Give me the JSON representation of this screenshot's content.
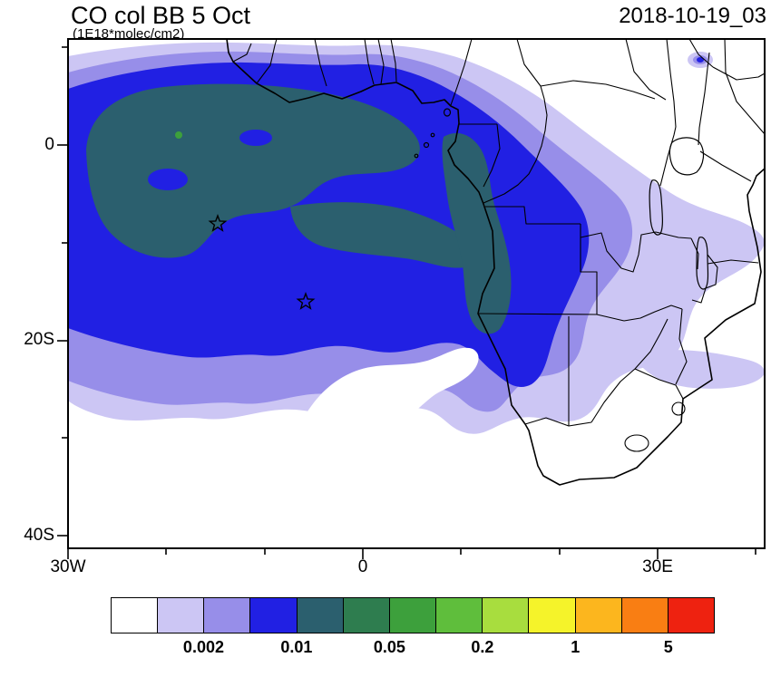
{
  "header": {
    "title": "CO col BB 5 Oct",
    "subtitle": "(1E18*molec/cm2)",
    "datetime": "2018-10-19_03"
  },
  "axes": {
    "y_ticks": [
      "0",
      "20S",
      "40S"
    ],
    "x_ticks": [
      "30W",
      "0",
      "30E"
    ]
  },
  "palette": {
    "c1": "#ffffff",
    "c2": "#ccc6f4",
    "c3": "#978ee9",
    "c4": "#2120e3",
    "c5": "#2b5f6e",
    "c6": "#2e7d4f",
    "c7": "#3da03c",
    "c8": "#5fbe3c",
    "c9": "#a8dd3e",
    "c10": "#f5f32a",
    "c11": "#fcb61e",
    "c12": "#f97e13",
    "c13": "#ee2210"
  },
  "colorbar": {
    "tick_labels": [
      "0.002",
      "0.01",
      "0.05",
      "0.2",
      "1",
      "5"
    ],
    "colors": [
      "#ffffff",
      "#ccc6f4",
      "#978ee9",
      "#2120e3",
      "#2b5f6e",
      "#2e7d4f",
      "#3da03c",
      "#5fbe3c",
      "#a8dd3e",
      "#f5f32a",
      "#fcb61e",
      "#f97e13",
      "#ee2210"
    ]
  },
  "chart_data": {
    "type": "heatmap",
    "title": "CO col BB 5 Oct",
    "units": "1E18*molec/cm2",
    "valid_time": "2018-10-19_03",
    "region": "Africa and tropical South Atlantic",
    "map_extent": {
      "lon": [
        -30,
        41
      ],
      "lat": [
        -41,
        11
      ]
    },
    "x_tick_labels": [
      "30W",
      "0",
      "30E"
    ],
    "y_tick_labels": [
      "0",
      "20S",
      "40S"
    ],
    "contour_levels": [
      0.001,
      0.002,
      0.005,
      0.01,
      0.02,
      0.05,
      0.1,
      0.2,
      0.5,
      1,
      2,
      5
    ],
    "labeled_levels": [
      0.002,
      0.01,
      0.05,
      0.2,
      1,
      5
    ],
    "colors": [
      "#ffffff",
      "#ccc6f4",
      "#978ee9",
      "#2120e3",
      "#2b5f6e",
      "#2e7d4f",
      "#3da03c",
      "#5fbe3c",
      "#a8dd3e",
      "#f5f32a",
      "#fcb61e",
      "#f97e13",
      "#ee2210"
    ],
    "legend_position": "bottom",
    "grid": false,
    "markers": [
      {
        "type": "star",
        "lon": -14.8,
        "lat": -8.1
      },
      {
        "type": "star",
        "lon": -5.8,
        "lat": -16.0
      }
    ],
    "features": [
      {
        "region": "central tropical South Atlantic plume core",
        "approx_value_range": "0.02-0.1"
      },
      {
        "region": "South Atlantic off Gabon/Congo/Angola coast",
        "approx_value_range": "0.01-0.05"
      },
      {
        "region": "inland Angola / DRC / Zambia",
        "approx_value_range": "0.002-0.01"
      },
      {
        "region": "outer fringe over southern and eastern Africa",
        "approx_value_range": "0.001-0.002"
      },
      {
        "region": "Sahel, Horn of Africa, far South Africa ocean",
        "approx_value_range": "<0.001"
      }
    ]
  }
}
